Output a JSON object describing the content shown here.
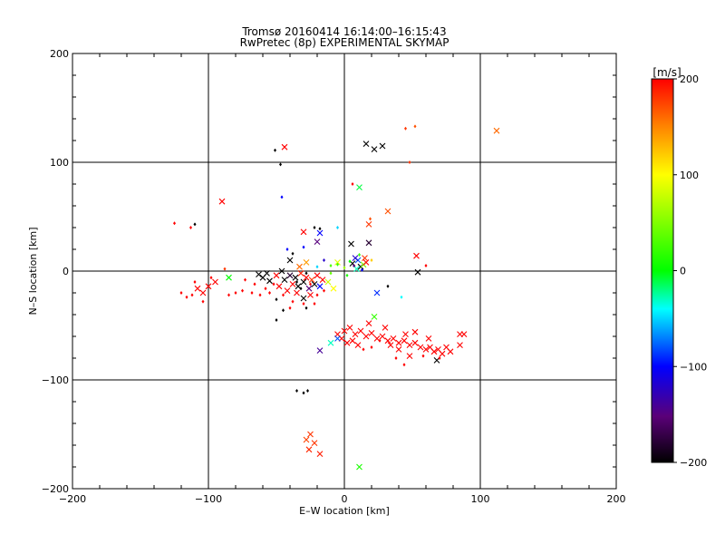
{
  "chart_data": {
    "type": "scatter",
    "title": "Tromsø 20160414 16:14:00–16:15:43",
    "subtitle": "RwPretec (8p) EXPERIMENTAL SKYMAP",
    "xlabel": "E–W location [km]",
    "ylabel": "N–S location [km]",
    "xlim": [
      -200,
      200
    ],
    "ylim": [
      -200,
      200
    ],
    "x_ticks": [
      -200,
      -100,
      0,
      100,
      200
    ],
    "y_ticks": [
      -200,
      -100,
      0,
      100,
      200
    ],
    "x_tick_labels": [
      "−200",
      "−100",
      "0",
      "100",
      "200"
    ],
    "y_tick_labels": [
      "−200",
      "−100",
      "0",
      "100",
      "200"
    ],
    "grid": true,
    "colorbar": {
      "label": "[m/s]",
      "range": [
        -200,
        200
      ],
      "ticks": [
        200,
        100,
        0,
        -100,
        -200
      ],
      "tick_labels": [
        "200",
        "100",
        "0",
        "−100",
        "−200"
      ],
      "stops": [
        "#000000",
        "#5a0078",
        "#0000ff",
        "#00ffff",
        "#00ff00",
        "#ffff00",
        "#ff8000",
        "#ff0000"
      ]
    },
    "points": [
      {
        "x": 112,
        "y": 129,
        "v": 160,
        "m": "x"
      },
      {
        "x": 16,
        "y": 117,
        "v": -200,
        "m": "x"
      },
      {
        "x": 22,
        "y": 112,
        "v": -200,
        "m": "x"
      },
      {
        "x": 28,
        "y": 115,
        "v": -200,
        "m": "x"
      },
      {
        "x": -44,
        "y": 114,
        "v": 200,
        "m": "x"
      },
      {
        "x": 52,
        "y": 133,
        "v": 170,
        "m": "d"
      },
      {
        "x": 45,
        "y": 131,
        "v": 180,
        "m": "d"
      },
      {
        "x": -51,
        "y": 111,
        "v": -200,
        "m": "d"
      },
      {
        "x": -47,
        "y": 98,
        "v": -200,
        "m": "d"
      },
      {
        "x": 48,
        "y": 100,
        "v": 180,
        "m": "d"
      },
      {
        "x": 11,
        "y": 77,
        "v": -10,
        "m": "x"
      },
      {
        "x": 6,
        "y": 80,
        "v": 200,
        "m": "d"
      },
      {
        "x": -46,
        "y": 68,
        "v": -100,
        "m": "d"
      },
      {
        "x": -90,
        "y": 64,
        "v": 200,
        "m": "x"
      },
      {
        "x": 32,
        "y": 55,
        "v": 170,
        "m": "x"
      },
      {
        "x": -125,
        "y": 44,
        "v": 200,
        "m": "d"
      },
      {
        "x": -110,
        "y": 43,
        "v": -200,
        "m": "d"
      },
      {
        "x": -113,
        "y": 40,
        "v": 200,
        "m": "d"
      },
      {
        "x": 18,
        "y": 43,
        "v": 180,
        "m": "x"
      },
      {
        "x": 19,
        "y": 48,
        "v": 170,
        "m": "d"
      },
      {
        "x": -22,
        "y": 40,
        "v": -200,
        "m": "d"
      },
      {
        "x": -18,
        "y": 39,
        "v": -200,
        "m": "d"
      },
      {
        "x": -5,
        "y": 40,
        "v": -50,
        "m": "d"
      },
      {
        "x": 5,
        "y": 25,
        "v": -200,
        "m": "x"
      },
      {
        "x": -18,
        "y": 35,
        "v": -100,
        "m": "x"
      },
      {
        "x": -30,
        "y": 36,
        "v": 200,
        "m": "x"
      },
      {
        "x": -20,
        "y": 27,
        "v": -150,
        "m": "x"
      },
      {
        "x": 18,
        "y": 26,
        "v": -180,
        "m": "x"
      },
      {
        "x": 53,
        "y": 14,
        "v": 200,
        "m": "x"
      },
      {
        "x": 15,
        "y": 12,
        "v": 180,
        "m": "x"
      },
      {
        "x": 10,
        "y": 10,
        "v": -80,
        "m": "x"
      },
      {
        "x": 12,
        "y": 4,
        "v": -200,
        "m": "x"
      },
      {
        "x": 8,
        "y": 12,
        "v": -120,
        "m": "x"
      },
      {
        "x": 14,
        "y": 6,
        "v": 50,
        "m": "x"
      },
      {
        "x": 6,
        "y": 7,
        "v": -200,
        "m": "x"
      },
      {
        "x": 9,
        "y": 2,
        "v": -30,
        "m": "x"
      },
      {
        "x": 16,
        "y": 8,
        "v": 200,
        "m": "x"
      },
      {
        "x": 11,
        "y": 15,
        "v": 20,
        "m": "d"
      },
      {
        "x": 7,
        "y": 5,
        "v": -150,
        "m": "d"
      },
      {
        "x": 13,
        "y": 1,
        "v": -100,
        "m": "d"
      },
      {
        "x": 4,
        "y": 9,
        "v": 0,
        "m": "d"
      },
      {
        "x": 20,
        "y": 10,
        "v": 120,
        "m": "d"
      },
      {
        "x": -5,
        "y": 8,
        "v": 90,
        "m": "x"
      },
      {
        "x": 0,
        "y": 3,
        "v": 60,
        "m": "d"
      },
      {
        "x": -10,
        "y": 5,
        "v": 30,
        "m": "d"
      },
      {
        "x": 2,
        "y": -4,
        "v": 10,
        "m": "d"
      },
      {
        "x": 54,
        "y": -1,
        "v": -200,
        "m": "x"
      },
      {
        "x": 60,
        "y": 5,
        "v": 200,
        "m": "d"
      },
      {
        "x": 32,
        "y": -14,
        "v": -200,
        "m": "d"
      },
      {
        "x": 42,
        "y": -24,
        "v": -40,
        "m": "d"
      },
      {
        "x": 24,
        "y": -20,
        "v": -90,
        "m": "x"
      },
      {
        "x": -63,
        "y": -3,
        "v": -200,
        "m": "x"
      },
      {
        "x": -60,
        "y": -6,
        "v": -200,
        "m": "x"
      },
      {
        "x": -57,
        "y": -2,
        "v": -200,
        "m": "x"
      },
      {
        "x": -55,
        "y": -9,
        "v": -200,
        "m": "x"
      },
      {
        "x": -50,
        "y": -4,
        "v": 200,
        "m": "x"
      },
      {
        "x": -46,
        "y": 0,
        "v": -200,
        "m": "x"
      },
      {
        "x": -44,
        "y": -8,
        "v": -200,
        "m": "x"
      },
      {
        "x": -40,
        "y": -4,
        "v": -180,
        "m": "x"
      },
      {
        "x": -38,
        "y": -12,
        "v": 200,
        "m": "x"
      },
      {
        "x": -36,
        "y": -6,
        "v": -200,
        "m": "x"
      },
      {
        "x": -34,
        "y": -14,
        "v": -200,
        "m": "x"
      },
      {
        "x": -32,
        "y": -2,
        "v": 190,
        "m": "x"
      },
      {
        "x": -30,
        "y": -10,
        "v": -200,
        "m": "x"
      },
      {
        "x": -28,
        "y": -6,
        "v": 200,
        "m": "x"
      },
      {
        "x": -26,
        "y": -16,
        "v": -150,
        "m": "x"
      },
      {
        "x": -24,
        "y": -8,
        "v": 180,
        "m": "x"
      },
      {
        "x": -22,
        "y": -12,
        "v": -200,
        "m": "x"
      },
      {
        "x": -20,
        "y": -4,
        "v": 200,
        "m": "x"
      },
      {
        "x": -18,
        "y": -14,
        "v": -100,
        "m": "x"
      },
      {
        "x": -16,
        "y": -8,
        "v": 200,
        "m": "x"
      },
      {
        "x": -42,
        "y": -18,
        "v": 200,
        "m": "x"
      },
      {
        "x": -35,
        "y": -20,
        "v": 200,
        "m": "x"
      },
      {
        "x": -30,
        "y": -25,
        "v": -200,
        "m": "x"
      },
      {
        "x": -25,
        "y": -22,
        "v": 200,
        "m": "x"
      },
      {
        "x": -48,
        "y": -14,
        "v": 200,
        "m": "x"
      },
      {
        "x": -33,
        "y": 4,
        "v": 160,
        "m": "x"
      },
      {
        "x": -28,
        "y": 8,
        "v": 140,
        "m": "x"
      },
      {
        "x": -12,
        "y": -10,
        "v": 80,
        "m": "x"
      },
      {
        "x": -8,
        "y": -16,
        "v": 100,
        "m": "x"
      },
      {
        "x": -40,
        "y": 10,
        "v": -200,
        "m": "x"
      },
      {
        "x": -52,
        "y": -12,
        "v": 200,
        "m": "d"
      },
      {
        "x": -45,
        "y": -22,
        "v": 200,
        "m": "d"
      },
      {
        "x": -38,
        "y": -28,
        "v": 200,
        "m": "d"
      },
      {
        "x": -30,
        "y": -30,
        "v": 200,
        "m": "d"
      },
      {
        "x": -20,
        "y": -22,
        "v": 200,
        "m": "d"
      },
      {
        "x": -15,
        "y": -18,
        "v": 200,
        "m": "d"
      },
      {
        "x": -55,
        "y": -20,
        "v": 200,
        "m": "d"
      },
      {
        "x": -62,
        "y": -22,
        "v": 200,
        "m": "d"
      },
      {
        "x": -68,
        "y": -20,
        "v": 200,
        "m": "d"
      },
      {
        "x": -75,
        "y": -18,
        "v": 200,
        "m": "d"
      },
      {
        "x": -80,
        "y": -20,
        "v": 200,
        "m": "d"
      },
      {
        "x": -85,
        "y": -22,
        "v": 200,
        "m": "d"
      },
      {
        "x": -73,
        "y": -8,
        "v": 200,
        "m": "d"
      },
      {
        "x": -66,
        "y": -12,
        "v": 200,
        "m": "d"
      },
      {
        "x": -58,
        "y": -16,
        "v": 200,
        "m": "d"
      },
      {
        "x": -50,
        "y": -26,
        "v": -200,
        "m": "d"
      },
      {
        "x": -40,
        "y": -34,
        "v": 200,
        "m": "d"
      },
      {
        "x": -50,
        "y": -45,
        "v": -200,
        "m": "d"
      },
      {
        "x": -45,
        "y": -36,
        "v": -200,
        "m": "d"
      },
      {
        "x": -28,
        "y": -34,
        "v": -200,
        "m": "d"
      },
      {
        "x": -22,
        "y": -30,
        "v": 200,
        "m": "d"
      },
      {
        "x": -35,
        "y": -10,
        "v": -200,
        "m": "d"
      },
      {
        "x": -32,
        "y": -16,
        "v": -200,
        "m": "d"
      },
      {
        "x": -28,
        "y": -2,
        "v": -200,
        "m": "d"
      },
      {
        "x": -25,
        "y": -12,
        "v": 200,
        "m": "d"
      },
      {
        "x": -20,
        "y": 4,
        "v": -50,
        "m": "d"
      },
      {
        "x": -15,
        "y": 10,
        "v": -120,
        "m": "d"
      },
      {
        "x": -10,
        "y": -2,
        "v": 40,
        "m": "d"
      },
      {
        "x": -5,
        "y": 6,
        "v": 20,
        "m": "d"
      },
      {
        "x": -38,
        "y": 16,
        "v": -200,
        "m": "d"
      },
      {
        "x": -42,
        "y": 20,
        "v": -100,
        "m": "d"
      },
      {
        "x": -30,
        "y": 22,
        "v": -100,
        "m": "d"
      },
      {
        "x": -95,
        "y": -10,
        "v": 200,
        "m": "x"
      },
      {
        "x": -100,
        "y": -14,
        "v": 200,
        "m": "x"
      },
      {
        "x": -104,
        "y": -20,
        "v": 200,
        "m": "x"
      },
      {
        "x": -108,
        "y": -16,
        "v": 200,
        "m": "x"
      },
      {
        "x": -112,
        "y": -22,
        "v": 200,
        "m": "d"
      },
      {
        "x": -116,
        "y": -24,
        "v": 200,
        "m": "d"
      },
      {
        "x": -120,
        "y": -20,
        "v": 200,
        "m": "d"
      },
      {
        "x": -104,
        "y": -28,
        "v": 200,
        "m": "d"
      },
      {
        "x": -110,
        "y": -10,
        "v": 200,
        "m": "d"
      },
      {
        "x": -98,
        "y": -6,
        "v": 200,
        "m": "d"
      },
      {
        "x": -85,
        "y": -6,
        "v": 0,
        "m": "x"
      },
      {
        "x": -88,
        "y": 2,
        "v": 180,
        "m": "d"
      },
      {
        "x": 0,
        "y": -55,
        "v": 200,
        "m": "x"
      },
      {
        "x": 4,
        "y": -52,
        "v": 200,
        "m": "x"
      },
      {
        "x": 8,
        "y": -58,
        "v": 200,
        "m": "x"
      },
      {
        "x": 12,
        "y": -55,
        "v": 200,
        "m": "x"
      },
      {
        "x": 16,
        "y": -60,
        "v": 200,
        "m": "x"
      },
      {
        "x": 20,
        "y": -57,
        "v": 200,
        "m": "x"
      },
      {
        "x": 24,
        "y": -62,
        "v": 200,
        "m": "x"
      },
      {
        "x": 28,
        "y": -60,
        "v": 200,
        "m": "x"
      },
      {
        "x": 32,
        "y": -64,
        "v": 200,
        "m": "x"
      },
      {
        "x": 36,
        "y": -62,
        "v": 200,
        "m": "x"
      },
      {
        "x": 40,
        "y": -66,
        "v": 200,
        "m": "x"
      },
      {
        "x": 44,
        "y": -64,
        "v": 200,
        "m": "x"
      },
      {
        "x": 48,
        "y": -68,
        "v": 200,
        "m": "x"
      },
      {
        "x": 52,
        "y": -66,
        "v": 200,
        "m": "x"
      },
      {
        "x": 56,
        "y": -70,
        "v": 200,
        "m": "x"
      },
      {
        "x": 60,
        "y": -72,
        "v": 200,
        "m": "x"
      },
      {
        "x": 63,
        "y": -70,
        "v": 200,
        "m": "x"
      },
      {
        "x": 66,
        "y": -74,
        "v": 200,
        "m": "x"
      },
      {
        "x": 69,
        "y": -72,
        "v": 200,
        "m": "x"
      },
      {
        "x": 72,
        "y": -76,
        "v": 200,
        "m": "x"
      },
      {
        "x": 75,
        "y": -70,
        "v": 200,
        "m": "x"
      },
      {
        "x": 78,
        "y": -74,
        "v": 200,
        "m": "x"
      },
      {
        "x": 85,
        "y": -58,
        "v": 200,
        "m": "x"
      },
      {
        "x": 88,
        "y": -58,
        "v": 200,
        "m": "x"
      },
      {
        "x": 85,
        "y": -68,
        "v": 200,
        "m": "x"
      },
      {
        "x": 45,
        "y": -58,
        "v": 200,
        "m": "x"
      },
      {
        "x": 52,
        "y": -56,
        "v": 200,
        "m": "x"
      },
      {
        "x": 62,
        "y": -62,
        "v": 200,
        "m": "x"
      },
      {
        "x": 30,
        "y": -52,
        "v": 200,
        "m": "x"
      },
      {
        "x": 18,
        "y": -48,
        "v": 200,
        "m": "x"
      },
      {
        "x": -2,
        "y": -62,
        "v": 200,
        "m": "x"
      },
      {
        "x": 2,
        "y": -66,
        "v": 200,
        "m": "x"
      },
      {
        "x": 6,
        "y": -64,
        "v": 200,
        "m": "x"
      },
      {
        "x": 10,
        "y": -68,
        "v": 200,
        "m": "x"
      },
      {
        "x": -5,
        "y": -58,
        "v": 200,
        "m": "x"
      },
      {
        "x": 68,
        "y": -82,
        "v": -200,
        "m": "x"
      },
      {
        "x": 48,
        "y": -78,
        "v": 200,
        "m": "x"
      },
      {
        "x": 40,
        "y": -72,
        "v": 200,
        "m": "x"
      },
      {
        "x": 34,
        "y": -68,
        "v": 200,
        "m": "x"
      },
      {
        "x": 26,
        "y": -64,
        "v": 200,
        "m": "d"
      },
      {
        "x": 38,
        "y": -80,
        "v": 200,
        "m": "d"
      },
      {
        "x": 44,
        "y": -86,
        "v": 200,
        "m": "d"
      },
      {
        "x": 58,
        "y": -78,
        "v": 200,
        "m": "d"
      },
      {
        "x": 70,
        "y": -80,
        "v": 200,
        "m": "d"
      },
      {
        "x": 14,
        "y": -72,
        "v": 200,
        "m": "d"
      },
      {
        "x": 20,
        "y": -70,
        "v": 200,
        "m": "d"
      },
      {
        "x": 22,
        "y": -42,
        "v": 20,
        "m": "x"
      },
      {
        "x": -5,
        "y": -62,
        "v": -80,
        "m": "x"
      },
      {
        "x": -10,
        "y": -66,
        "v": -30,
        "m": "x"
      },
      {
        "x": -18,
        "y": -73,
        "v": -140,
        "m": "x"
      },
      {
        "x": -35,
        "y": -110,
        "v": -200,
        "m": "d"
      },
      {
        "x": -30,
        "y": -112,
        "v": -200,
        "m": "d"
      },
      {
        "x": -27,
        "y": -110,
        "v": -200,
        "m": "d"
      },
      {
        "x": -25,
        "y": -150,
        "v": 180,
        "m": "x"
      },
      {
        "x": -28,
        "y": -155,
        "v": 175,
        "m": "x"
      },
      {
        "x": -22,
        "y": -158,
        "v": 180,
        "m": "x"
      },
      {
        "x": -26,
        "y": -164,
        "v": 185,
        "m": "x"
      },
      {
        "x": -18,
        "y": -168,
        "v": 190,
        "m": "x"
      },
      {
        "x": 11,
        "y": -180,
        "v": 10,
        "m": "x"
      }
    ]
  }
}
